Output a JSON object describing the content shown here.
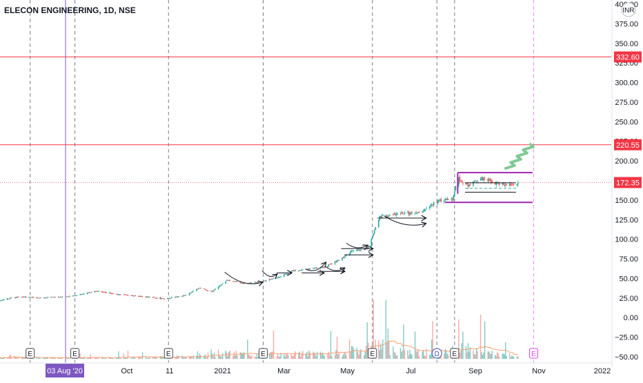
{
  "chart_data": {
    "type": "candlestick",
    "title": "ELECON ENGINEERING, 1D, NSE",
    "currency_badge": "INR",
    "y_axis": {
      "range": [
        -55,
        400
      ],
      "ticks": [
        "400.00",
        "375.00",
        "350.00",
        "325.00",
        "300.00",
        "275.00",
        "250.00",
        "225.00",
        "200.00",
        "175.00",
        "150.00",
        "125.00",
        "100.00",
        "75.00",
        "50.00",
        "25.00",
        "0.00",
        "−25.00",
        "−50.00"
      ],
      "tick_values": [
        400,
        375,
        350,
        325,
        300,
        275,
        250,
        225,
        200,
        175,
        150,
        125,
        100,
        75,
        50,
        25,
        0,
        -25,
        -50
      ]
    },
    "x_axis": {
      "start": "2020-06-01",
      "end": "2022-01-15",
      "ticks": [
        {
          "label": "Oct",
          "date": "2020-10-01"
        },
        {
          "label": "11",
          "date": "2020-11-11"
        },
        {
          "label": "2021",
          "date": "2021-01-01"
        },
        {
          "label": "Mar",
          "date": "2021-03-01"
        },
        {
          "label": "May",
          "date": "2021-05-01"
        },
        {
          "label": "Jul",
          "date": "2021-07-01"
        },
        {
          "label": "Sep",
          "date": "2021-09-01"
        },
        {
          "label": "Nov",
          "date": "2021-11-01"
        },
        {
          "label": "2022",
          "date": "2022-01-01"
        }
      ],
      "crosshair": {
        "label": "03 Aug '20",
        "date": "2020-08-03"
      }
    },
    "horizontal_levels": [
      {
        "label": "332.60",
        "value": 332.6,
        "color": "#f23645"
      },
      {
        "label": "220.55",
        "value": 220.55,
        "color": "#f23645"
      },
      {
        "label": "172.35",
        "value": 172.35,
        "color": "#f23645"
      }
    ],
    "price_path": [
      [
        "2020-06-01",
        22
      ],
      [
        "2020-06-20",
        27
      ],
      [
        "2020-07-10",
        25
      ],
      [
        "2020-08-05",
        27
      ],
      [
        "2020-08-20",
        30
      ],
      [
        "2020-09-01",
        34
      ],
      [
        "2020-09-20",
        30
      ],
      [
        "2020-10-15",
        27
      ],
      [
        "2020-11-05",
        24
      ],
      [
        "2020-11-25",
        28
      ],
      [
        "2020-12-10",
        38
      ],
      [
        "2020-12-22",
        33
      ],
      [
        "2021-01-05",
        48
      ],
      [
        "2021-01-20",
        44
      ],
      [
        "2021-02-05",
        45
      ],
      [
        "2021-02-25",
        52
      ],
      [
        "2021-03-10",
        60
      ],
      [
        "2021-03-25",
        62
      ],
      [
        "2021-04-10",
        65
      ],
      [
        "2021-04-25",
        75
      ],
      [
        "2021-05-05",
        85
      ],
      [
        "2021-05-20",
        88
      ],
      [
        "2021-06-01",
        128
      ],
      [
        "2021-06-20",
        133
      ],
      [
        "2021-07-10",
        133
      ],
      [
        "2021-07-25",
        148
      ],
      [
        "2021-08-10",
        152
      ],
      [
        "2021-08-15",
        178
      ],
      [
        "2021-08-25",
        168
      ],
      [
        "2021-09-05",
        178
      ],
      [
        "2021-09-20",
        172
      ],
      [
        "2021-10-05",
        170
      ],
      [
        "2021-10-12",
        172
      ]
    ],
    "volume_profile": [
      [
        "2020-06-01",
        3
      ],
      [
        "2020-09-01",
        2
      ],
      [
        "2020-11-20",
        4
      ],
      [
        "2021-01-01",
        10
      ],
      [
        "2021-03-01",
        8
      ],
      [
        "2021-05-01",
        13
      ],
      [
        "2021-06-01",
        26
      ],
      [
        "2021-07-01",
        12
      ],
      [
        "2021-08-05",
        12
      ],
      [
        "2021-08-15",
        22
      ],
      [
        "2021-09-15",
        10
      ],
      [
        "2021-10-12",
        6
      ]
    ],
    "event_markers": [
      {
        "label": "E",
        "date": "2020-06-30"
      },
      {
        "label": "E",
        "date": "2020-08-12"
      },
      {
        "label": "E",
        "date": "2020-11-10"
      },
      {
        "label": "E",
        "date": "2021-02-09"
      },
      {
        "label": "E",
        "date": "2021-05-25"
      },
      {
        "label": "D",
        "date": "2021-07-26"
      },
      {
        "label": "E",
        "date": "2021-08-12"
      },
      {
        "label": "E",
        "date": "2021-10-27"
      }
    ],
    "drawings": {
      "range_top": 185,
      "range_bottom": 147,
      "range_start": "2021-08-15",
      "range_end": "2021-10-26"
    },
    "grid": false,
    "legend": "none",
    "colors": {
      "up": "#26a69a",
      "down": "#ef5350",
      "volume_ma": "#f7a072",
      "range_box": "#9c27b0",
      "forecast": "#81c995",
      "crosshair": "#7e57c2"
    }
  }
}
